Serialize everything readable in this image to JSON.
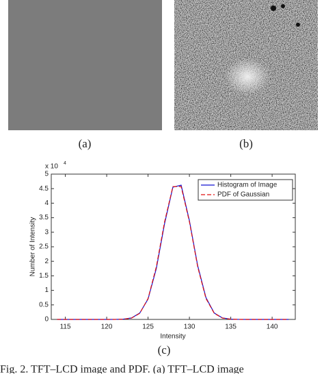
{
  "panels": [
    {
      "label": "(a)"
    },
    {
      "label": "(b)"
    }
  ],
  "chart_data": {
    "type": "line",
    "panel_label": "(c)",
    "xlabel": "Intensity",
    "ylabel": "Number of Intensity",
    "y_scale_base": "x 10",
    "y_scale_exponent": "4",
    "x": [
      114,
      120,
      121,
      122,
      123,
      124,
      125,
      126,
      127,
      128,
      129,
      130,
      131,
      132,
      133,
      134,
      135,
      136,
      137,
      142
    ],
    "series": [
      {
        "name": "Histogram of Image",
        "color": "#1010d0",
        "dash": false,
        "values": [
          0,
          0,
          0.001,
          0.01,
          0.05,
          0.22,
          0.7,
          1.75,
          3.3,
          4.55,
          4.62,
          3.4,
          1.85,
          0.75,
          0.22,
          0.05,
          0.01,
          0.001,
          0,
          0
        ]
      },
      {
        "name": "PDF of Gaussian",
        "color": "#e01010",
        "dash": true,
        "values": [
          0,
          0,
          0.0008,
          0.007,
          0.045,
          0.21,
          0.72,
          1.81,
          3.36,
          4.57,
          4.57,
          3.36,
          1.81,
          0.72,
          0.21,
          0.045,
          0.007,
          0.0008,
          0,
          0
        ]
      }
    ],
    "xlim": [
      113.3,
      142.8
    ],
    "xticks": [
      115,
      120,
      125,
      130,
      135,
      140
    ],
    "ylim": [
      0,
      5
    ],
    "yticks": [
      0,
      0.5,
      1,
      1.5,
      2,
      2.5,
      3,
      3.5,
      4,
      4.5,
      5
    ],
    "legend": "top-right"
  },
  "caption": "Fig. 2. TFT–LCD image and PDF. (a) TFT–LCD image"
}
